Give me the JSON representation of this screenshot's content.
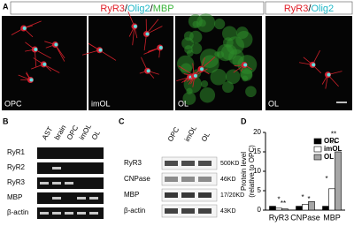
{
  "panel_a": {
    "label": "A",
    "header_left": [
      "RyR3",
      "/",
      "Olig2",
      "/",
      "MBP"
    ],
    "header_right": [
      "RyR3",
      "/",
      "Olig2"
    ],
    "image_labels": [
      "OPC",
      "imOL",
      "OL",
      "OL"
    ]
  },
  "panel_b": {
    "label": "B",
    "columns": [
      "AST",
      "brain",
      "OPC",
      "imOL",
      "OL"
    ],
    "rows": [
      "RyR1",
      "RyR2",
      "RyR3",
      "MBP",
      "β-actin"
    ]
  },
  "panel_c": {
    "label": "C",
    "columns": [
      "OPC",
      "imOL",
      "OL"
    ],
    "rows": [
      "RyR3",
      "CNPase",
      "MBP",
      "β-actin"
    ],
    "sizes": [
      "500KD",
      "46KD",
      "17/20KD",
      "43KD"
    ]
  },
  "panel_d": {
    "label": "D"
  },
  "chart_data": {
    "type": "bar",
    "y_label": [
      "Protein level",
      "(relative to OPC)"
    ],
    "categories": [
      "RyR3",
      "CNPase",
      "MBP"
    ],
    "series": [
      {
        "name": "OPC",
        "color": "#000000",
        "values": [
          1,
          1,
          1
        ]
      },
      {
        "name": "imOL",
        "color": "#ffffff",
        "values": [
          0.5,
          1.5,
          5.5
        ]
      },
      {
        "name": "OL",
        "color": "#a6a6a6",
        "values": [
          0.3,
          2.2,
          15
        ]
      }
    ],
    "ylim": [
      0,
      20
    ],
    "yticks": [
      0,
      5,
      10,
      15,
      20
    ],
    "annotations": [
      "*",
      "**",
      "*",
      "*",
      "*",
      "**",
      "**"
    ]
  }
}
